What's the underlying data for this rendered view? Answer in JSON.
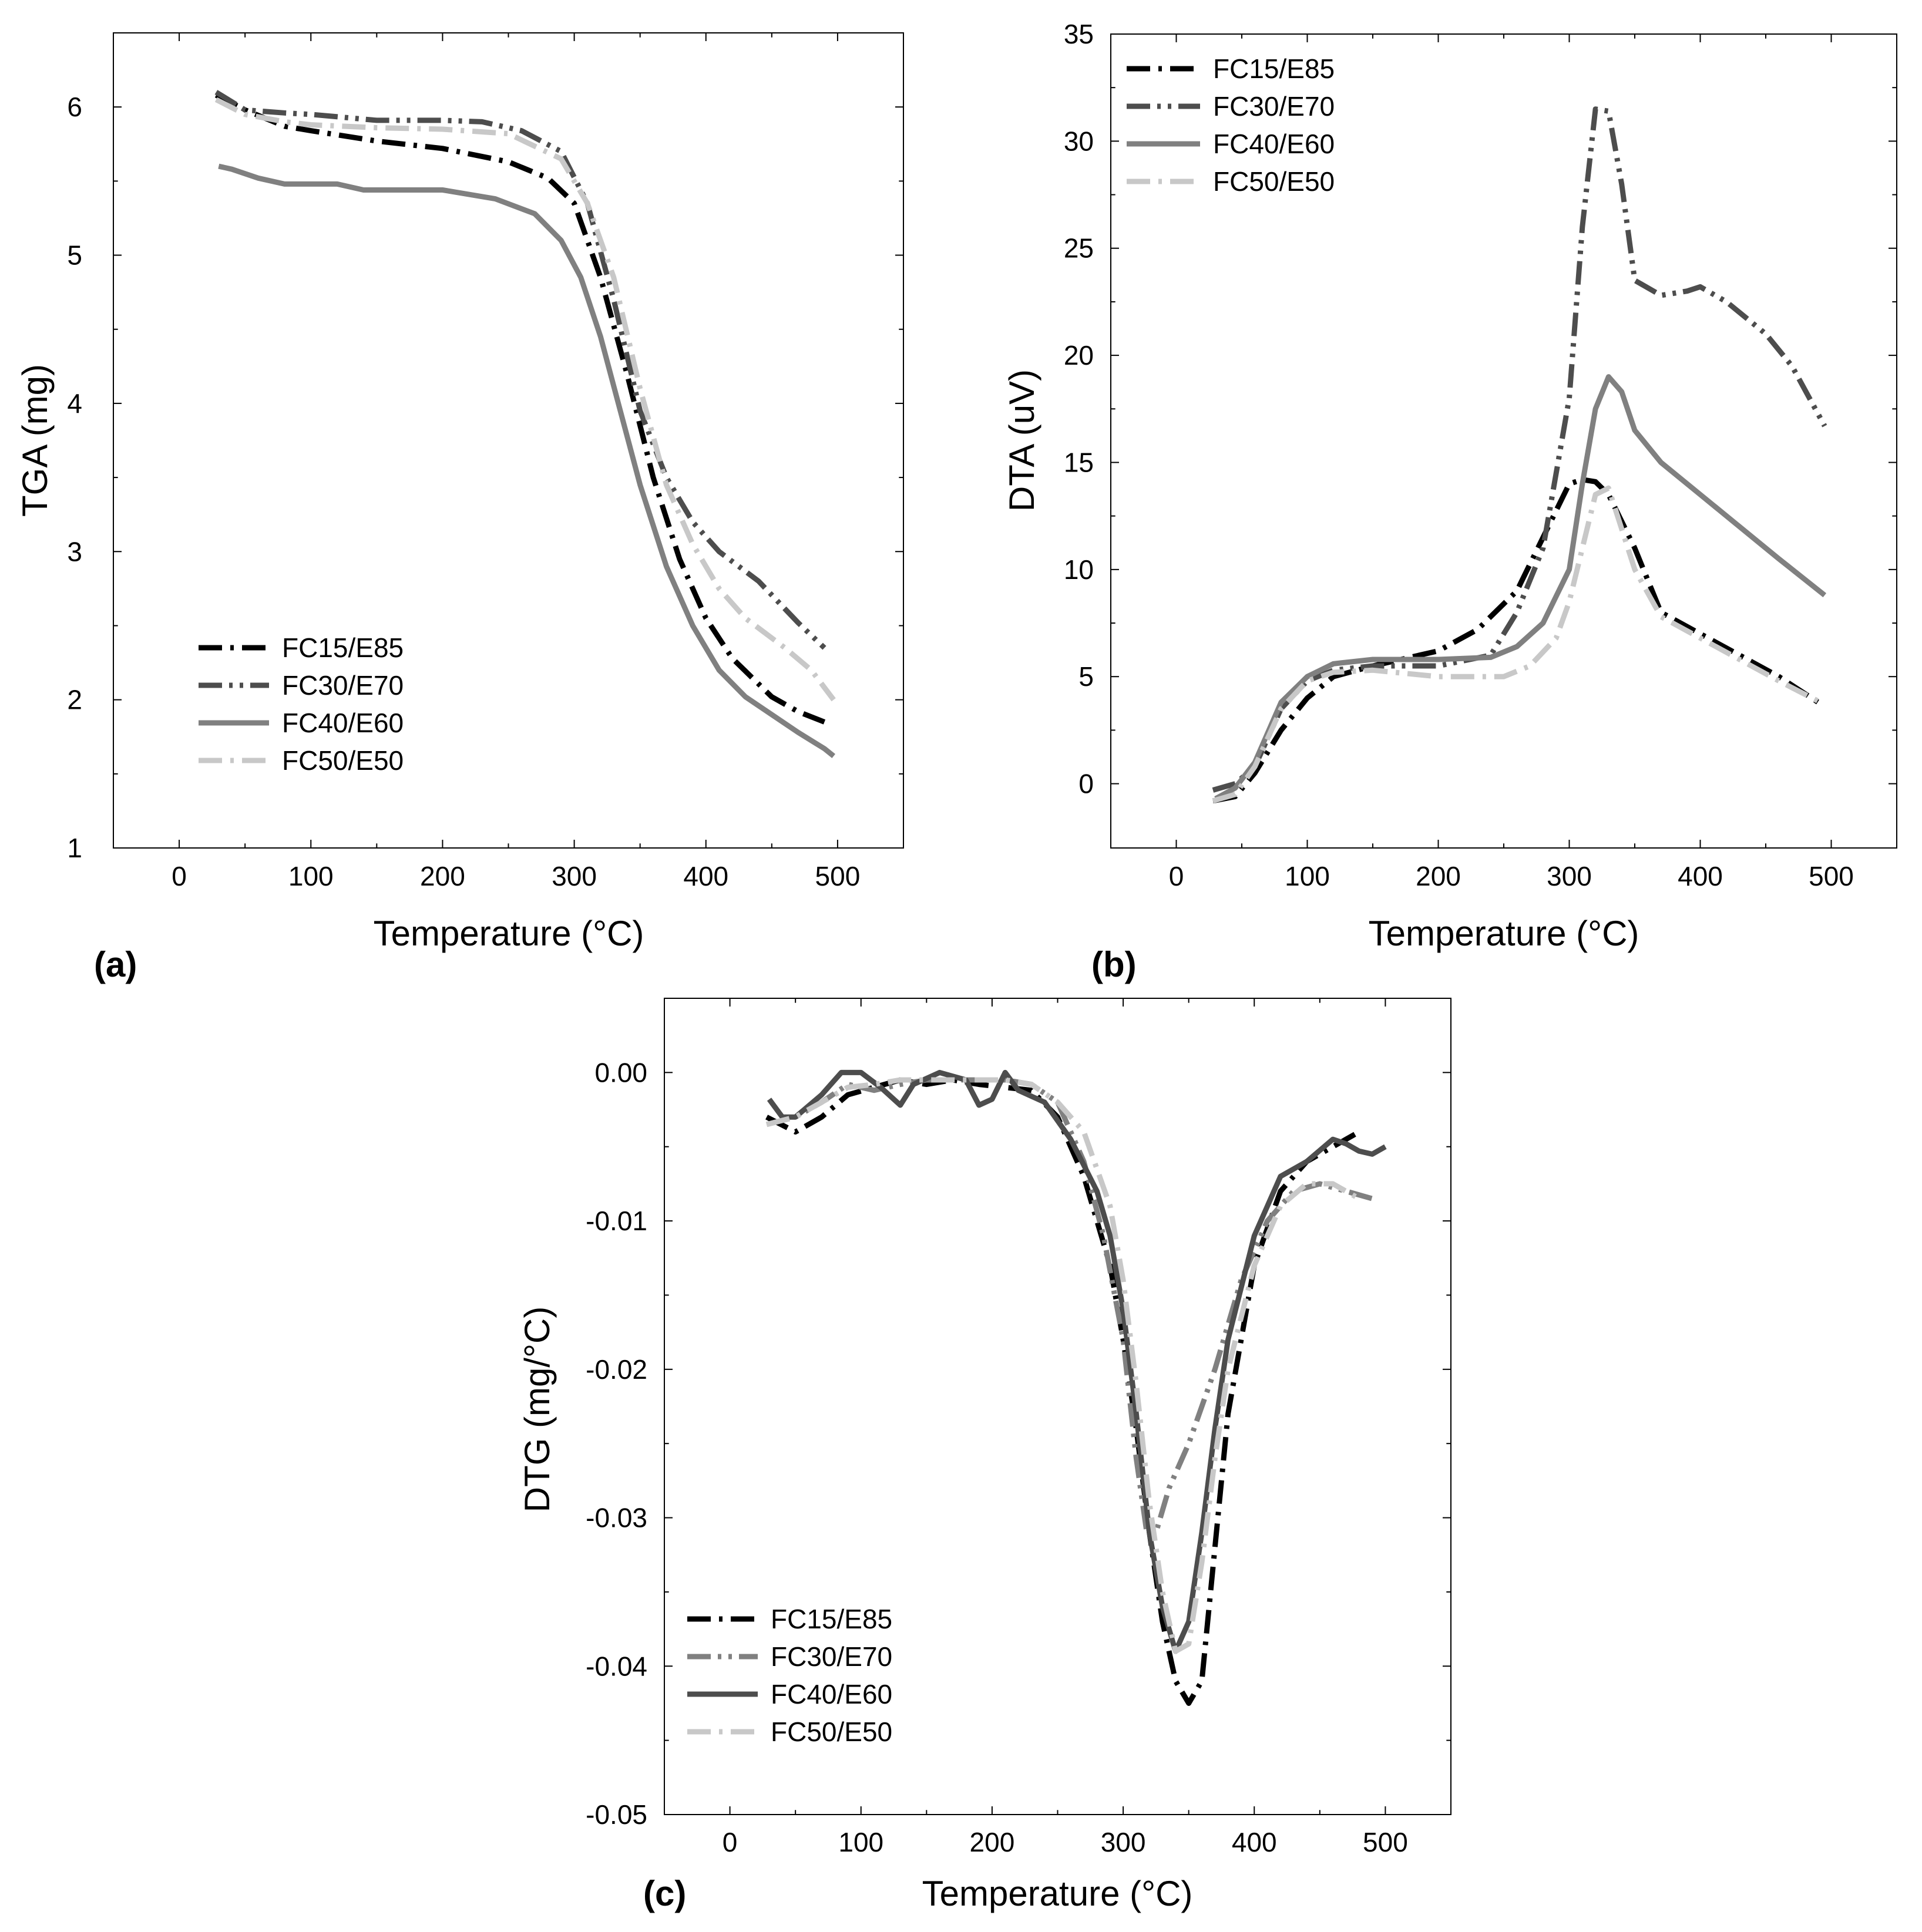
{
  "colors": {
    "FC15/E85": "#000000",
    "FC30/E70": "#4d4d4d",
    "FC40/E60": "#808080",
    "FC50/E50": "#c8c8c8",
    "FC30/E70 (c)": "#808080",
    "FC40/E60 (c)": "#4d4d4d"
  },
  "chart_data": [
    {
      "type": "line",
      "panel_label": "(a)",
      "xlabel": "Temperature (°C)",
      "ylabel": "TGA (mg)",
      "xlim": [
        -50,
        550
      ],
      "ylim": [
        1,
        6.5
      ],
      "xticks": [
        0,
        100,
        200,
        300,
        400,
        500
      ],
      "xtick_labels": [
        "0",
        "100",
        "200",
        "300",
        "400",
        "500"
      ],
      "yticks": [
        1,
        2,
        3,
        4,
        5,
        6
      ],
      "ytick_labels": [
        "1",
        "2",
        "3",
        "4",
        "5",
        "6"
      ],
      "legend_position": "bottom-left",
      "series": [
        {
          "name": "FC15/E85",
          "style": "dash-dot",
          "color_key": "FC15/E85",
          "x": [
            28,
            50,
            80,
            100,
            150,
            200,
            250,
            280,
            300,
            320,
            340,
            360,
            380,
            400,
            420,
            450,
            470,
            490
          ],
          "y": [
            6.08,
            5.98,
            5.87,
            5.84,
            5.77,
            5.72,
            5.63,
            5.52,
            5.35,
            4.85,
            4.2,
            3.5,
            2.95,
            2.55,
            2.28,
            2.02,
            1.92,
            1.85
          ]
        },
        {
          "name": "FC30/E70",
          "style": "dash-dot-dot",
          "color_key": "FC30/E70",
          "x": [
            28,
            50,
            80,
            100,
            150,
            200,
            230,
            260,
            290,
            310,
            330,
            350,
            370,
            390,
            410,
            440,
            470,
            490
          ],
          "y": [
            6.1,
            5.98,
            5.96,
            5.95,
            5.91,
            5.91,
            5.9,
            5.84,
            5.7,
            5.35,
            4.7,
            3.95,
            3.5,
            3.2,
            3.0,
            2.8,
            2.52,
            2.35
          ]
        },
        {
          "name": "FC40/E60",
          "style": "solid",
          "color_key": "FC40/E60",
          "x": [
            30,
            40,
            60,
            80,
            120,
            140,
            200,
            240,
            270,
            290,
            305,
            320,
            335,
            350,
            370,
            390,
            410,
            430,
            450,
            470,
            490,
            497
          ],
          "y": [
            5.6,
            5.58,
            5.52,
            5.48,
            5.48,
            5.44,
            5.44,
            5.38,
            5.28,
            5.1,
            4.85,
            4.45,
            3.95,
            3.45,
            2.9,
            2.5,
            2.2,
            2.02,
            1.9,
            1.78,
            1.67,
            1.62
          ]
        },
        {
          "name": "FC50/E50",
          "style": "dash-dot",
          "color_key": "FC50/E50",
          "x": [
            28,
            50,
            80,
            100,
            150,
            200,
            250,
            290,
            310,
            330,
            350,
            370,
            390,
            410,
            430,
            460,
            480,
            497
          ],
          "y": [
            6.05,
            5.95,
            5.9,
            5.88,
            5.86,
            5.85,
            5.82,
            5.65,
            5.35,
            4.85,
            4.1,
            3.45,
            3.05,
            2.75,
            2.55,
            2.35,
            2.2,
            2.0
          ]
        }
      ]
    },
    {
      "type": "line",
      "panel_label": "(b)",
      "xlabel": "Temperature (°C)",
      "ylabel": "DTA (uV)",
      "xlim": [
        -50,
        550
      ],
      "ylim": [
        -3,
        35
      ],
      "xticks": [
        0,
        100,
        200,
        300,
        400,
        500
      ],
      "xtick_labels": [
        "0",
        "100",
        "200",
        "300",
        "400",
        "500"
      ],
      "yticks": [
        0,
        5,
        10,
        15,
        20,
        25,
        30,
        35
      ],
      "ytick_labels": [
        "0",
        "5",
        "10",
        "15",
        "20",
        "25",
        "30",
        "35"
      ],
      "legend_position": "top-left",
      "series": [
        {
          "name": "FC15/E85",
          "style": "dash-dot",
          "color_key": "FC15/E85",
          "x": [
            28,
            45,
            60,
            80,
            100,
            120,
            150,
            200,
            230,
            260,
            280,
            300,
            310,
            320,
            330,
            350,
            370,
            400,
            430,
            460,
            490
          ],
          "y": [
            -0.8,
            -0.6,
            0.5,
            2.5,
            4.0,
            5.0,
            5.5,
            6.2,
            7.2,
            9.0,
            11.5,
            14.0,
            14.2,
            14.1,
            13.5,
            11.0,
            8.0,
            7.0,
            6.0,
            5.0,
            3.8
          ]
        },
        {
          "name": "FC30/E70",
          "style": "dash-dot-dot",
          "color_key": "FC30/E70",
          "x": [
            28,
            45,
            60,
            80,
            100,
            120,
            150,
            200,
            240,
            260,
            280,
            300,
            310,
            320,
            330,
            340,
            350,
            370,
            390,
            400,
            420,
            450,
            470,
            495
          ],
          "y": [
            -0.3,
            0,
            0.8,
            3.5,
            4.8,
            5.3,
            5.5,
            5.5,
            6.0,
            8.0,
            11.0,
            18.0,
            26.0,
            31.5,
            31.4,
            28.0,
            23.5,
            22.8,
            23.0,
            23.2,
            22.5,
            21.0,
            19.5,
            16.7
          ]
        },
        {
          "name": "FC40/E60",
          "style": "solid",
          "color_key": "FC40/E60",
          "x": [
            30,
            45,
            60,
            80,
            100,
            120,
            150,
            200,
            240,
            260,
            280,
            300,
            310,
            320,
            330,
            340,
            350,
            370,
            400,
            430,
            460,
            495
          ],
          "y": [
            -0.7,
            -0.2,
            1.0,
            3.8,
            5.0,
            5.6,
            5.8,
            5.8,
            5.9,
            6.4,
            7.5,
            10.0,
            14.0,
            17.5,
            19.0,
            18.3,
            16.5,
            15.0,
            13.5,
            12.0,
            10.5,
            8.8
          ]
        },
        {
          "name": "FC50/E50",
          "style": "dash-dot",
          "color_key": "FC50/E50",
          "x": [
            28,
            45,
            60,
            80,
            100,
            120,
            150,
            200,
            250,
            270,
            290,
            300,
            310,
            320,
            330,
            350,
            370,
            400,
            430,
            460,
            495
          ],
          "y": [
            -0.8,
            -0.5,
            0.8,
            3.5,
            4.8,
            5.2,
            5.3,
            5.0,
            5.0,
            5.5,
            6.8,
            8.5,
            11.0,
            13.5,
            13.8,
            10.0,
            7.8,
            6.8,
            5.8,
            4.8,
            3.7
          ]
        }
      ]
    },
    {
      "type": "line",
      "panel_label": "(c)",
      "xlabel": "Temperature (°C)",
      "ylabel": "DTG (mg/°C)",
      "xlim": [
        -50,
        550
      ],
      "ylim": [
        -0.05,
        0.005
      ],
      "xticks": [
        0,
        100,
        200,
        300,
        400,
        500
      ],
      "xtick_labels": [
        "0",
        "100",
        "200",
        "300",
        "400",
        "500"
      ],
      "yticks": [
        0.0,
        -0.01,
        -0.02,
        -0.03,
        -0.04,
        -0.05
      ],
      "ytick_labels": [
        "0.00",
        "-0.01",
        "-0.02",
        "-0.03",
        "-0.04",
        "-0.05"
      ],
      "legend_position": "bottom-left",
      "series": [
        {
          "name": "FC15/E85",
          "style": "dash-dot",
          "color_key": "FC15/E85",
          "x": [
            28,
            50,
            70,
            90,
            110,
            130,
            150,
            170,
            190,
            210,
            230,
            250,
            270,
            290,
            300,
            310,
            320,
            330,
            340,
            350,
            360,
            370,
            380,
            400,
            420,
            440,
            460,
            480
          ],
          "y": [
            -0.003,
            -0.004,
            -0.003,
            -0.0015,
            -0.001,
            -0.0005,
            -0.0008,
            -0.0005,
            -0.0008,
            -0.001,
            -0.0012,
            -0.003,
            -0.007,
            -0.013,
            -0.018,
            -0.024,
            -0.031,
            -0.037,
            -0.041,
            -0.0425,
            -0.041,
            -0.032,
            -0.023,
            -0.013,
            -0.008,
            -0.006,
            -0.005,
            -0.004
          ]
        },
        {
          "name": "FC30/E70",
          "style": "dash-dot-dot",
          "color_key": "FC30/E70 (c)",
          "x": [
            28,
            50,
            70,
            90,
            110,
            130,
            150,
            170,
            190,
            210,
            230,
            250,
            270,
            285,
            300,
            310,
            318,
            325,
            335,
            350,
            370,
            390,
            410,
            430,
            450,
            470,
            490
          ],
          "y": [
            -0.0035,
            -0.003,
            -0.002,
            -0.0008,
            -0.0012,
            -0.0008,
            -0.0005,
            -0.0005,
            -0.0005,
            -0.0005,
            -0.0008,
            -0.002,
            -0.006,
            -0.011,
            -0.018,
            -0.026,
            -0.031,
            -0.031,
            -0.028,
            -0.025,
            -0.02,
            -0.014,
            -0.01,
            -0.008,
            -0.0075,
            -0.008,
            -0.0085
          ]
        },
        {
          "name": "FC40/E60",
          "style": "solid",
          "color_key": "FC40/E60 (c)",
          "x": [
            30,
            40,
            50,
            70,
            85,
            100,
            115,
            130,
            140,
            160,
            180,
            190,
            200,
            210,
            220,
            240,
            260,
            280,
            290,
            300,
            310,
            320,
            330,
            340,
            350,
            360,
            370,
            380,
            400,
            420,
            440,
            460,
            470,
            480,
            490,
            500
          ],
          "y": [
            -0.0018,
            -0.003,
            -0.003,
            -0.0015,
            0.0,
            0.0,
            -0.001,
            -0.0022,
            -0.0008,
            0.0,
            -0.0005,
            -0.0022,
            -0.0018,
            0.0,
            -0.0012,
            -0.002,
            -0.0045,
            -0.008,
            -0.011,
            -0.016,
            -0.023,
            -0.031,
            -0.036,
            -0.039,
            -0.037,
            -0.031,
            -0.024,
            -0.018,
            -0.011,
            -0.007,
            -0.006,
            -0.0045,
            -0.0048,
            -0.0053,
            -0.0055,
            -0.005
          ]
        },
        {
          "name": "FC50/E50",
          "style": "dash-dot",
          "color_key": "FC50/E50",
          "x": [
            28,
            50,
            70,
            90,
            110,
            130,
            150,
            170,
            190,
            210,
            230,
            250,
            270,
            290,
            300,
            310,
            320,
            330,
            340,
            350,
            360,
            370,
            380,
            400,
            420,
            440,
            460,
            480
          ],
          "y": [
            -0.0035,
            -0.003,
            -0.002,
            -0.001,
            -0.0008,
            -0.0005,
            -0.0005,
            -0.0005,
            -0.0005,
            -0.0005,
            -0.0008,
            -0.002,
            -0.004,
            -0.009,
            -0.014,
            -0.021,
            -0.029,
            -0.035,
            -0.039,
            -0.0385,
            -0.033,
            -0.026,
            -0.02,
            -0.013,
            -0.009,
            -0.0075,
            -0.0075,
            -0.0085
          ]
        }
      ]
    }
  ]
}
